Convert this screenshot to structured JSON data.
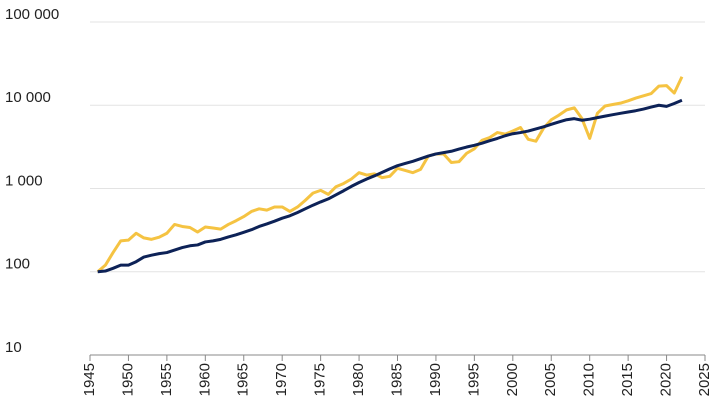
{
  "chart_data": {
    "type": "line",
    "log_y": true,
    "grid": true,
    "x": [
      1946,
      1947,
      1948,
      1949,
      1950,
      1951,
      1952,
      1953,
      1954,
      1955,
      1956,
      1957,
      1958,
      1959,
      1960,
      1961,
      1962,
      1963,
      1964,
      1965,
      1966,
      1967,
      1968,
      1969,
      1970,
      1971,
      1972,
      1973,
      1974,
      1975,
      1976,
      1977,
      1978,
      1979,
      1980,
      1981,
      1982,
      1983,
      1984,
      1985,
      1986,
      1987,
      1988,
      1989,
      1990,
      1991,
      1992,
      1993,
      1994,
      1995,
      1996,
      1997,
      1998,
      1999,
      2000,
      2001,
      2002,
      2003,
      2004,
      2005,
      2006,
      2007,
      2008,
      2009,
      2010,
      2011,
      2012,
      2013,
      2014,
      2015,
      2016,
      2017,
      2018,
      2019,
      2020,
      2021,
      2022
    ],
    "series": [
      {
        "color": "#f5c342",
        "values": [
          100,
          120,
          170,
          235,
          240,
          290,
          255,
          245,
          260,
          290,
          370,
          350,
          340,
          300,
          345,
          335,
          325,
          370,
          410,
          460,
          530,
          570,
          550,
          600,
          600,
          530,
          600,
          720,
          880,
          950,
          850,
          1050,
          1150,
          1300,
          1550,
          1450,
          1500,
          1350,
          1400,
          1750,
          1650,
          1550,
          1700,
          2450,
          2600,
          2600,
          2050,
          2100,
          2650,
          3000,
          3800,
          4100,
          4700,
          4500,
          4900,
          5400,
          3900,
          3700,
          5300,
          6700,
          7600,
          8800,
          9300,
          6900,
          4000,
          8000,
          9800,
          10200,
          10600,
          11300,
          12200,
          13000,
          13800,
          17000,
          17200,
          14000,
          22000
        ]
      },
      {
        "color": "#0d2257",
        "values": [
          100,
          102,
          110,
          120,
          120,
          132,
          150,
          158,
          165,
          170,
          182,
          195,
          205,
          210,
          228,
          235,
          245,
          262,
          278,
          298,
          320,
          350,
          375,
          405,
          440,
          470,
          515,
          570,
          630,
          690,
          750,
          840,
          940,
          1060,
          1180,
          1300,
          1420,
          1560,
          1720,
          1880,
          2000,
          2120,
          2280,
          2450,
          2600,
          2700,
          2800,
          2980,
          3150,
          3300,
          3500,
          3750,
          4000,
          4300,
          4550,
          4700,
          4900,
          5200,
          5500,
          5900,
          6300,
          6700,
          6900,
          6600,
          6800,
          7100,
          7400,
          7700,
          8000,
          8300,
          8600,
          9000,
          9500,
          10000,
          9700,
          10500,
          11500
        ]
      }
    ],
    "xlim": [
      1945,
      2025
    ],
    "xticks": [
      1945,
      1950,
      1955,
      1960,
      1965,
      1970,
      1975,
      1980,
      1985,
      1990,
      1995,
      2000,
      2005,
      2010,
      2015,
      2020,
      2025
    ],
    "ylim": [
      10,
      100000
    ],
    "yticks": [
      10,
      100,
      {
        "value": 1000,
        "label": "1 000"
      },
      {
        "value": 10000,
        "label": "10 000"
      },
      {
        "value": 100000,
        "label": "100 000"
      }
    ]
  }
}
